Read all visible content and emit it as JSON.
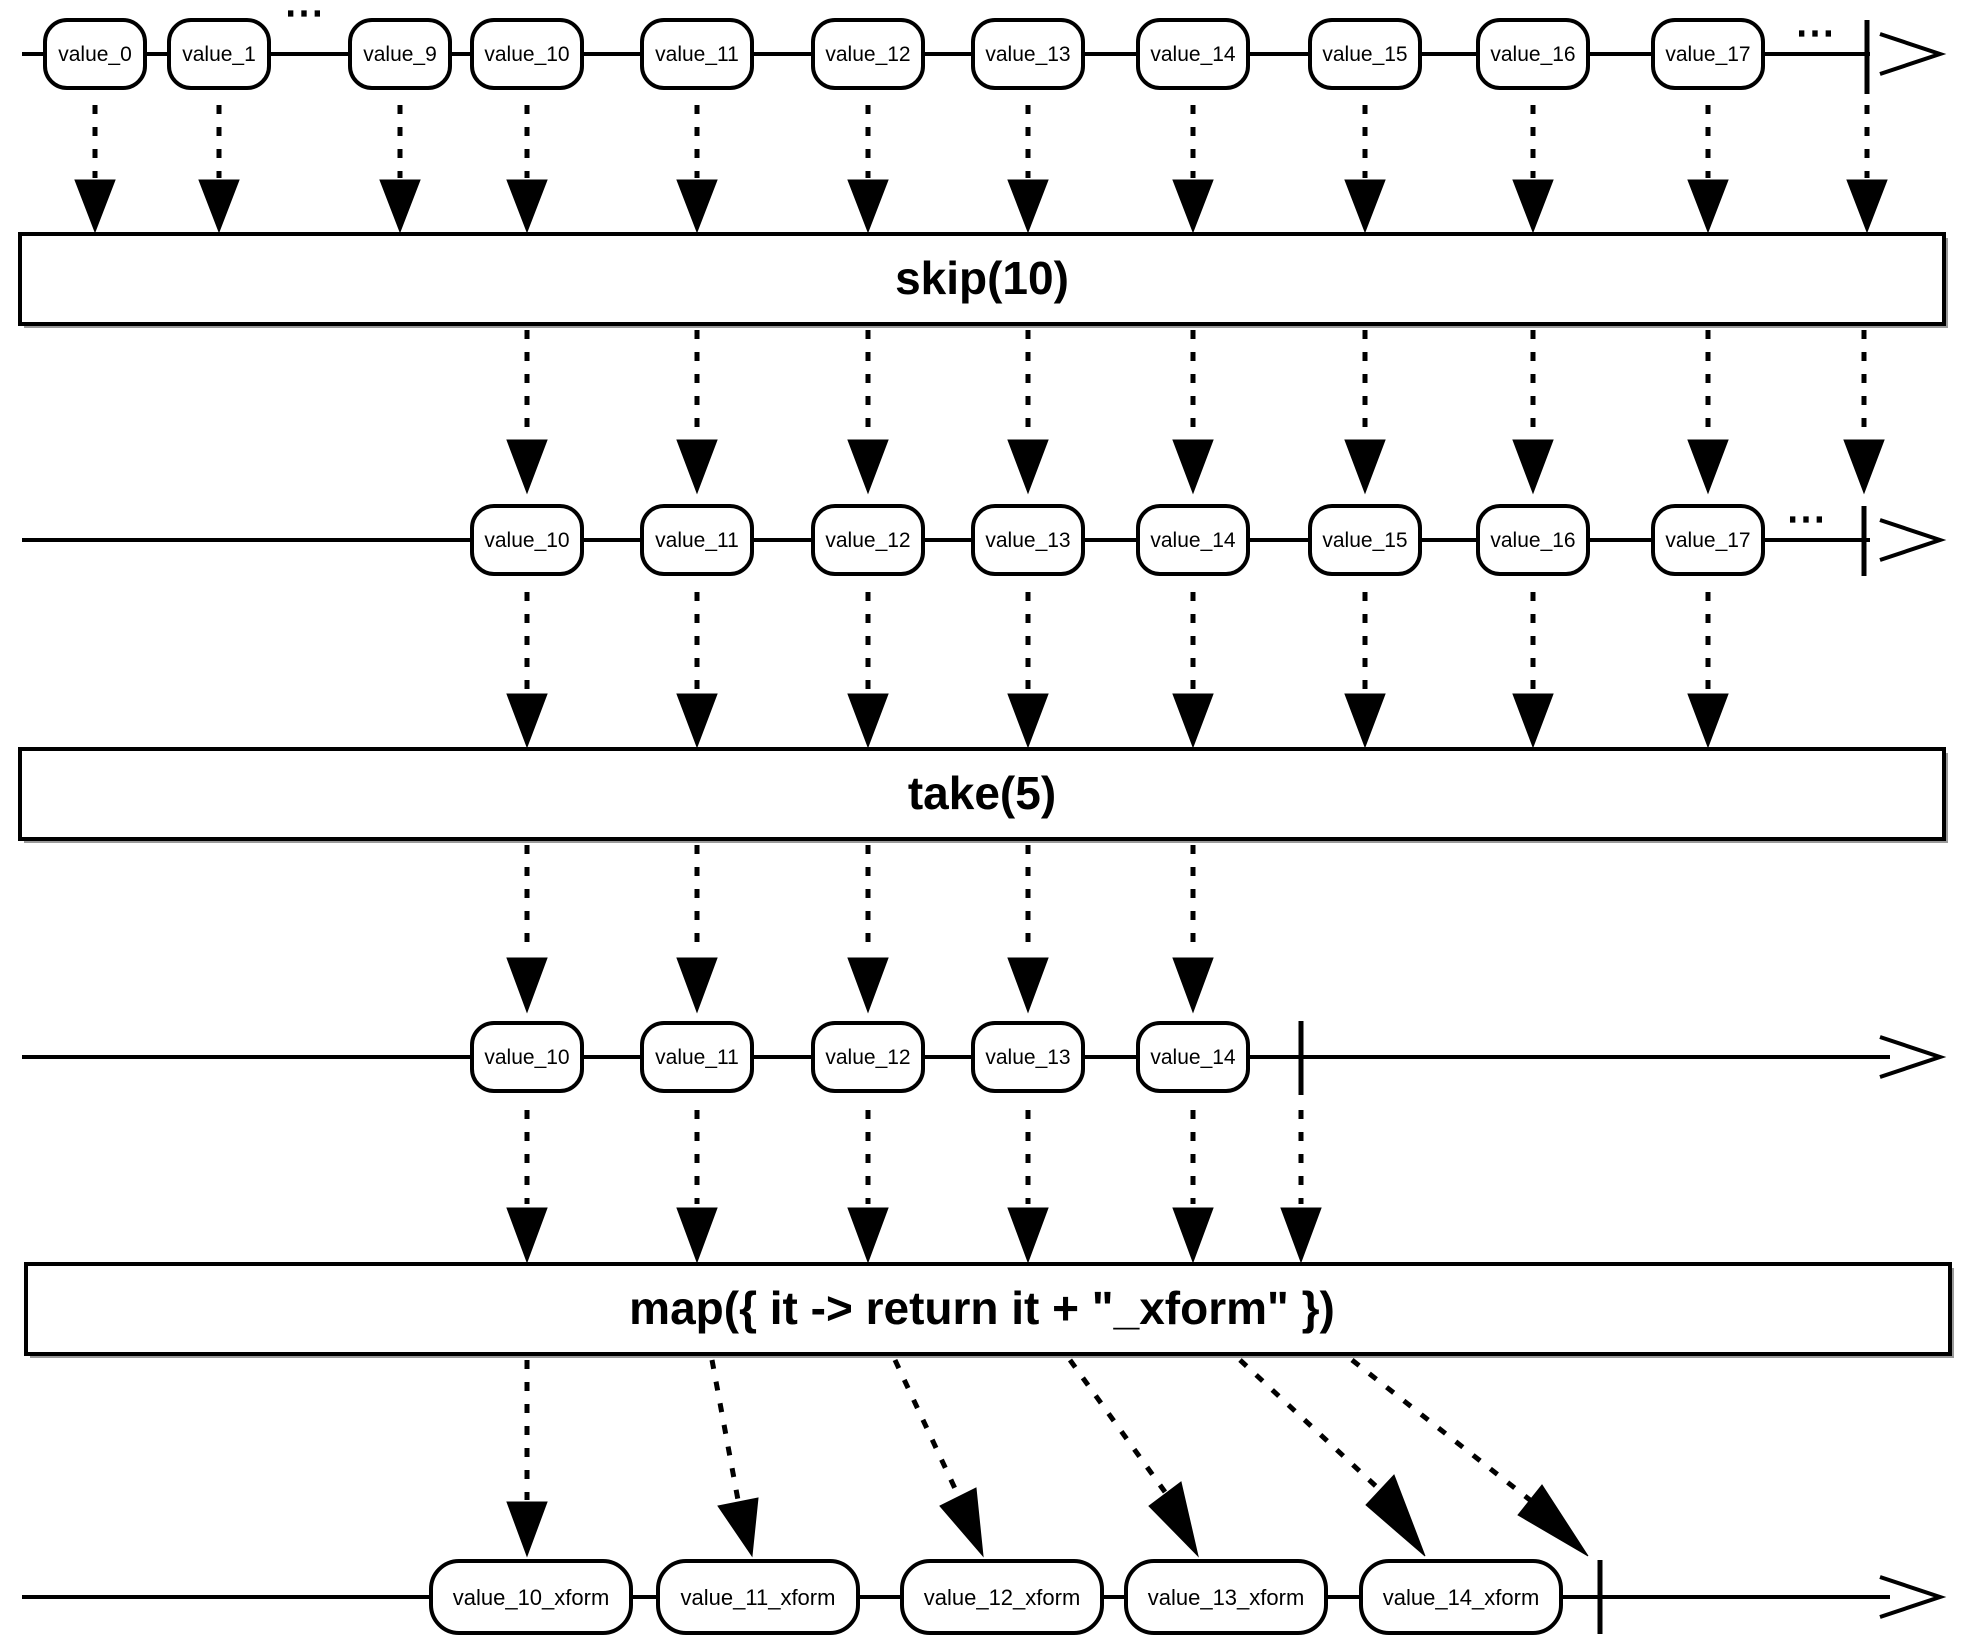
{
  "timelines": [
    {
      "id": "source",
      "items": [
        "value_0",
        "value_1",
        "value_9",
        "value_10",
        "value_11",
        "value_12",
        "value_13",
        "value_14",
        "value_15",
        "value_16",
        "value_17"
      ],
      "ellipses": [
        "⋯",
        "⋯"
      ],
      "completes": true
    },
    {
      "id": "after-skip",
      "items": [
        "value_10",
        "value_11",
        "value_12",
        "value_13",
        "value_14",
        "value_15",
        "value_16",
        "value_17"
      ],
      "ellipses": [
        "⋯"
      ],
      "completes": true
    },
    {
      "id": "after-take",
      "items": [
        "value_10",
        "value_11",
        "value_12",
        "value_13",
        "value_14"
      ],
      "completes": true
    },
    {
      "id": "after-map",
      "items": [
        "value_10_xform",
        "value_11_xform",
        "value_12_xform",
        "value_13_xform",
        "value_14_xform"
      ],
      "completes": true
    }
  ],
  "operators": [
    {
      "id": "skip",
      "label": "skip(10)"
    },
    {
      "id": "take",
      "label": "take(5)"
    },
    {
      "id": "map",
      "label": "map({ it -> return it + \"_xform\" })"
    }
  ]
}
